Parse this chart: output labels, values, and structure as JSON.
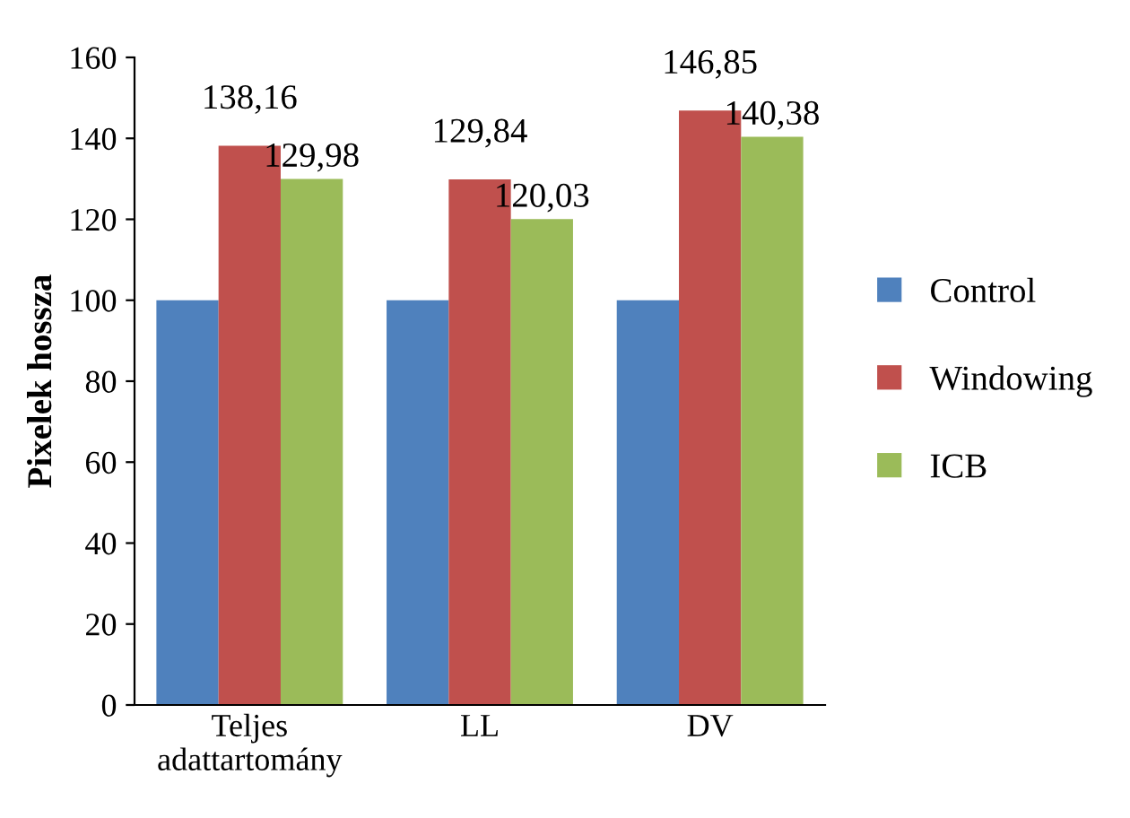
{
  "chart_data": {
    "type": "bar",
    "ylabel": "Pixelek hossza",
    "categories": [
      "Teljes\nadattartomány",
      "LL",
      "DV"
    ],
    "series": [
      {
        "name": "Control",
        "color": "#4f81bd",
        "values": [
          100,
          100,
          100
        ],
        "value_labels": [
          null,
          null,
          null
        ]
      },
      {
        "name": "Windowing",
        "color": "#c0504d",
        "values": [
          138.16,
          129.84,
          146.85
        ],
        "value_labels": [
          "138,16",
          "129,84",
          "146,85"
        ]
      },
      {
        "name": "ICB",
        "color": "#9bbb59",
        "values": [
          129.98,
          120.03,
          140.38
        ],
        "value_labels": [
          "129,98",
          "120,03",
          "140,38"
        ]
      }
    ],
    "ylim": [
      0,
      160
    ],
    "yticks": [
      0,
      20,
      40,
      60,
      80,
      100,
      120,
      140,
      160
    ],
    "grid": false,
    "legend": "right"
  }
}
